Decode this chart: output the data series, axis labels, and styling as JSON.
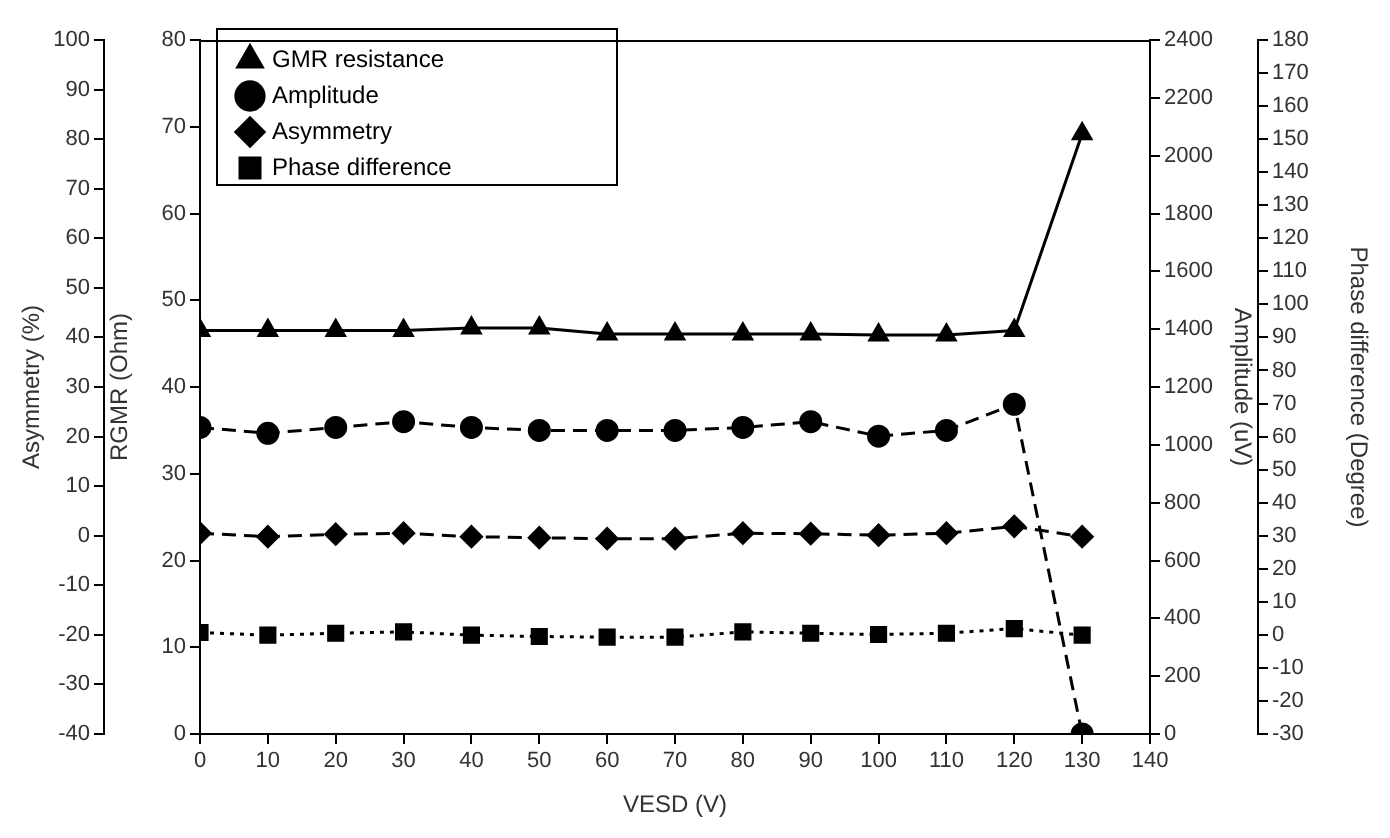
{
  "chart_data": [
    {
      "type": "line",
      "xlabel": "VESD (V)",
      "ylabel": "RGMR (Ohm)",
      "y2label": "Amplitude (uV)",
      "y3label": "Asymmetry (%)",
      "x": [
        0,
        10,
        20,
        30,
        40,
        50,
        60,
        70,
        80,
        90,
        100,
        110,
        120,
        130
      ],
      "xlim": [
        0,
        140
      ],
      "xticks": [
        0,
        10,
        20,
        30,
        40,
        50,
        60,
        70,
        80,
        90,
        100,
        110,
        120,
        130,
        140
      ],
      "ylim": [
        0,
        80
      ],
      "yticks": [
        0,
        10,
        20,
        30,
        40,
        50,
        60,
        70,
        80
      ],
      "y2lim": [
        0,
        2400
      ],
      "y2ticks": [
        0,
        200,
        400,
        600,
        800,
        1000,
        1200,
        1400,
        1600,
        1800,
        2000,
        2200,
        2400
      ],
      "y3lim": [
        -40,
        100
      ],
      "y3ticks": [
        -40,
        -30,
        -20,
        -10,
        0,
        10,
        20,
        30,
        40,
        50,
        60,
        70,
        80,
        90,
        100
      ],
      "legend": "top left",
      "grid": false,
      "series": [
        {
          "name": "GMR resistance",
          "color": "#000000",
          "marker": "triangle",
          "line_style": "solid",
          "values": [
            46.5,
            46.5,
            46.5,
            46.5,
            46.8,
            46.8,
            46.1,
            46.1,
            46.1,
            46.1,
            46.0,
            46.0,
            46.5,
            69.2
          ]
        },
        {
          "name": "Amplitude",
          "color": "#000000",
          "axis": "y2",
          "marker": "circle",
          "line_style": "dashed",
          "values": [
            1060,
            1040,
            1060,
            1080,
            1060,
            1050,
            1050,
            1050,
            1060,
            1080,
            1030,
            1050,
            1140,
            0
          ]
        },
        {
          "name": "Asymmetry",
          "color": "#000000",
          "axis": "y3",
          "marker": "diamond",
          "line_style": "dashed",
          "values": [
            0.5,
            -0.2,
            0.3,
            0.5,
            -0.2,
            -0.4,
            -0.6,
            -0.6,
            0.5,
            0.4,
            0.1,
            0.5,
            1.9,
            -0.2
          ]
        }
      ]
    },
    {
      "type": "line",
      "ylabel": "Phase difference (Degree)",
      "x": [
        0,
        10,
        20,
        30,
        40,
        50,
        60,
        70,
        80,
        90,
        100,
        110,
        120,
        130
      ],
      "xlim": [
        0,
        140
      ],
      "ylim": [
        -30,
        180
      ],
      "yticks": [
        -30,
        -20,
        -10,
        0,
        10,
        20,
        30,
        40,
        50,
        60,
        70,
        80,
        90,
        100,
        110,
        120,
        130,
        140,
        150,
        160,
        170,
        180
      ],
      "tick_labels": "y",
      "legend": "top left",
      "grid": false,
      "series": [
        {
          "name": "Phase difference",
          "color": "#000000",
          "marker": "square",
          "line_style": "dotted",
          "values": [
            0.7,
            -0.1,
            0.5,
            0.9,
            -0.1,
            -0.5,
            -0.7,
            -0.7,
            0.9,
            0.5,
            0.1,
            0.5,
            1.9,
            -0.1
          ]
        }
      ]
    }
  ]
}
